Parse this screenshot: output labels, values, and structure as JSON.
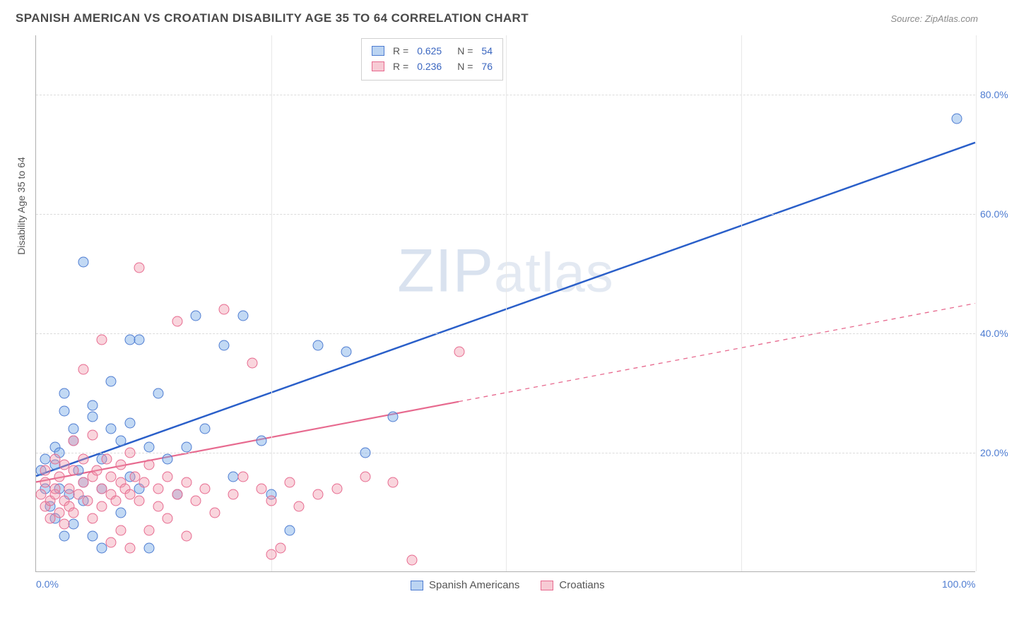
{
  "title": "SPANISH AMERICAN VS CROATIAN DISABILITY AGE 35 TO 64 CORRELATION CHART",
  "source": "Source: ZipAtlas.com",
  "ylabel": "Disability Age 35 to 64",
  "watermark": "ZIPatlas",
  "chart": {
    "type": "scatter-correlation",
    "xlim": [
      0,
      100
    ],
    "ylim": [
      0,
      90
    ],
    "xticks": [
      {
        "v": 0,
        "label": "0.0%"
      },
      {
        "v": 100,
        "label": "100.0%"
      }
    ],
    "xgrid": [
      25,
      50,
      75,
      100
    ],
    "yticks": [
      {
        "v": 20,
        "label": "20.0%"
      },
      {
        "v": 40,
        "label": "40.0%"
      },
      {
        "v": 60,
        "label": "60.0%"
      },
      {
        "v": 80,
        "label": "80.0%"
      }
    ],
    "series": [
      {
        "name": "Spanish Americans",
        "color_fill": "rgba(120,170,230,0.45)",
        "color_stroke": "#4e7cd1",
        "trend_color": "#2a5fc9",
        "trend_width": 2.5,
        "trend_solid_until_x": 100,
        "trend": {
          "x1": 0,
          "y1": 16,
          "x2": 100,
          "y2": 72
        },
        "R": "0.625",
        "N": "54",
        "points": [
          [
            0.5,
            17
          ],
          [
            1,
            14
          ],
          [
            1,
            19
          ],
          [
            1.5,
            11
          ],
          [
            2,
            21
          ],
          [
            2,
            18
          ],
          [
            2,
            9
          ],
          [
            2.5,
            14
          ],
          [
            2.5,
            20
          ],
          [
            3,
            27
          ],
          [
            3,
            6
          ],
          [
            3,
            30
          ],
          [
            3.5,
            13
          ],
          [
            4,
            8
          ],
          [
            4,
            22
          ],
          [
            4,
            24
          ],
          [
            4.5,
            17
          ],
          [
            5,
            52
          ],
          [
            5,
            12
          ],
          [
            5,
            15
          ],
          [
            6,
            6
          ],
          [
            6,
            26
          ],
          [
            6,
            28
          ],
          [
            7,
            19
          ],
          [
            7,
            14
          ],
          [
            7,
            4
          ],
          [
            8,
            24
          ],
          [
            8,
            32
          ],
          [
            9,
            22
          ],
          [
            9,
            10
          ],
          [
            10,
            39
          ],
          [
            10,
            25
          ],
          [
            10,
            16
          ],
          [
            11,
            39
          ],
          [
            11,
            14
          ],
          [
            12,
            4
          ],
          [
            12,
            21
          ],
          [
            13,
            30
          ],
          [
            14,
            19
          ],
          [
            15,
            13
          ],
          [
            16,
            21
          ],
          [
            17,
            43
          ],
          [
            18,
            24
          ],
          [
            20,
            38
          ],
          [
            21,
            16
          ],
          [
            22,
            43
          ],
          [
            24,
            22
          ],
          [
            25,
            13
          ],
          [
            27,
            7
          ],
          [
            30,
            38
          ],
          [
            33,
            37
          ],
          [
            35,
            20
          ],
          [
            38,
            26
          ],
          [
            98,
            76
          ]
        ]
      },
      {
        "name": "Croatians",
        "color_fill": "rgba(240,150,170,0.40)",
        "color_stroke": "#e76a8f",
        "trend_color": "#e76a8f",
        "trend_width": 2.2,
        "trend_solid_until_x": 45,
        "trend": {
          "x1": 0,
          "y1": 15,
          "x2": 100,
          "y2": 45
        },
        "R": "0.236",
        "N": "76",
        "points": [
          [
            0.5,
            13
          ],
          [
            1,
            11
          ],
          [
            1,
            15
          ],
          [
            1,
            17
          ],
          [
            1.5,
            12
          ],
          [
            1.5,
            9
          ],
          [
            2,
            13
          ],
          [
            2,
            14
          ],
          [
            2,
            19
          ],
          [
            2.5,
            10
          ],
          [
            2.5,
            16
          ],
          [
            3,
            12
          ],
          [
            3,
            18
          ],
          [
            3,
            8
          ],
          [
            3.5,
            14
          ],
          [
            3.5,
            11
          ],
          [
            4,
            17
          ],
          [
            4,
            10
          ],
          [
            4,
            22
          ],
          [
            4.5,
            13
          ],
          [
            5,
            15
          ],
          [
            5,
            19
          ],
          [
            5,
            34
          ],
          [
            5.5,
            12
          ],
          [
            6,
            9
          ],
          [
            6,
            16
          ],
          [
            6,
            23
          ],
          [
            6.5,
            17
          ],
          [
            7,
            14
          ],
          [
            7,
            11
          ],
          [
            7,
            39
          ],
          [
            7.5,
            19
          ],
          [
            8,
            13
          ],
          [
            8,
            16
          ],
          [
            8,
            5
          ],
          [
            8.5,
            12
          ],
          [
            9,
            15
          ],
          [
            9,
            18
          ],
          [
            9,
            7
          ],
          [
            9.5,
            14
          ],
          [
            10,
            13
          ],
          [
            10,
            20
          ],
          [
            10,
            4
          ],
          [
            10.5,
            16
          ],
          [
            11,
            12
          ],
          [
            11,
            51
          ],
          [
            11.5,
            15
          ],
          [
            12,
            18
          ],
          [
            12,
            7
          ],
          [
            13,
            14
          ],
          [
            13,
            11
          ],
          [
            14,
            16
          ],
          [
            14,
            9
          ],
          [
            15,
            42
          ],
          [
            15,
            13
          ],
          [
            16,
            15
          ],
          [
            16,
            6
          ],
          [
            17,
            12
          ],
          [
            18,
            14
          ],
          [
            19,
            10
          ],
          [
            20,
            44
          ],
          [
            21,
            13
          ],
          [
            22,
            16
          ],
          [
            23,
            35
          ],
          [
            24,
            14
          ],
          [
            25,
            12
          ],
          [
            25,
            3
          ],
          [
            26,
            4
          ],
          [
            27,
            15
          ],
          [
            28,
            11
          ],
          [
            30,
            13
          ],
          [
            32,
            14
          ],
          [
            35,
            16
          ],
          [
            38,
            15
          ],
          [
            40,
            2
          ],
          [
            45,
            37
          ]
        ]
      }
    ]
  },
  "legend_bottom": [
    {
      "swatch": "blue",
      "label": "Spanish Americans"
    },
    {
      "swatch": "pink",
      "label": "Croatians"
    }
  ]
}
